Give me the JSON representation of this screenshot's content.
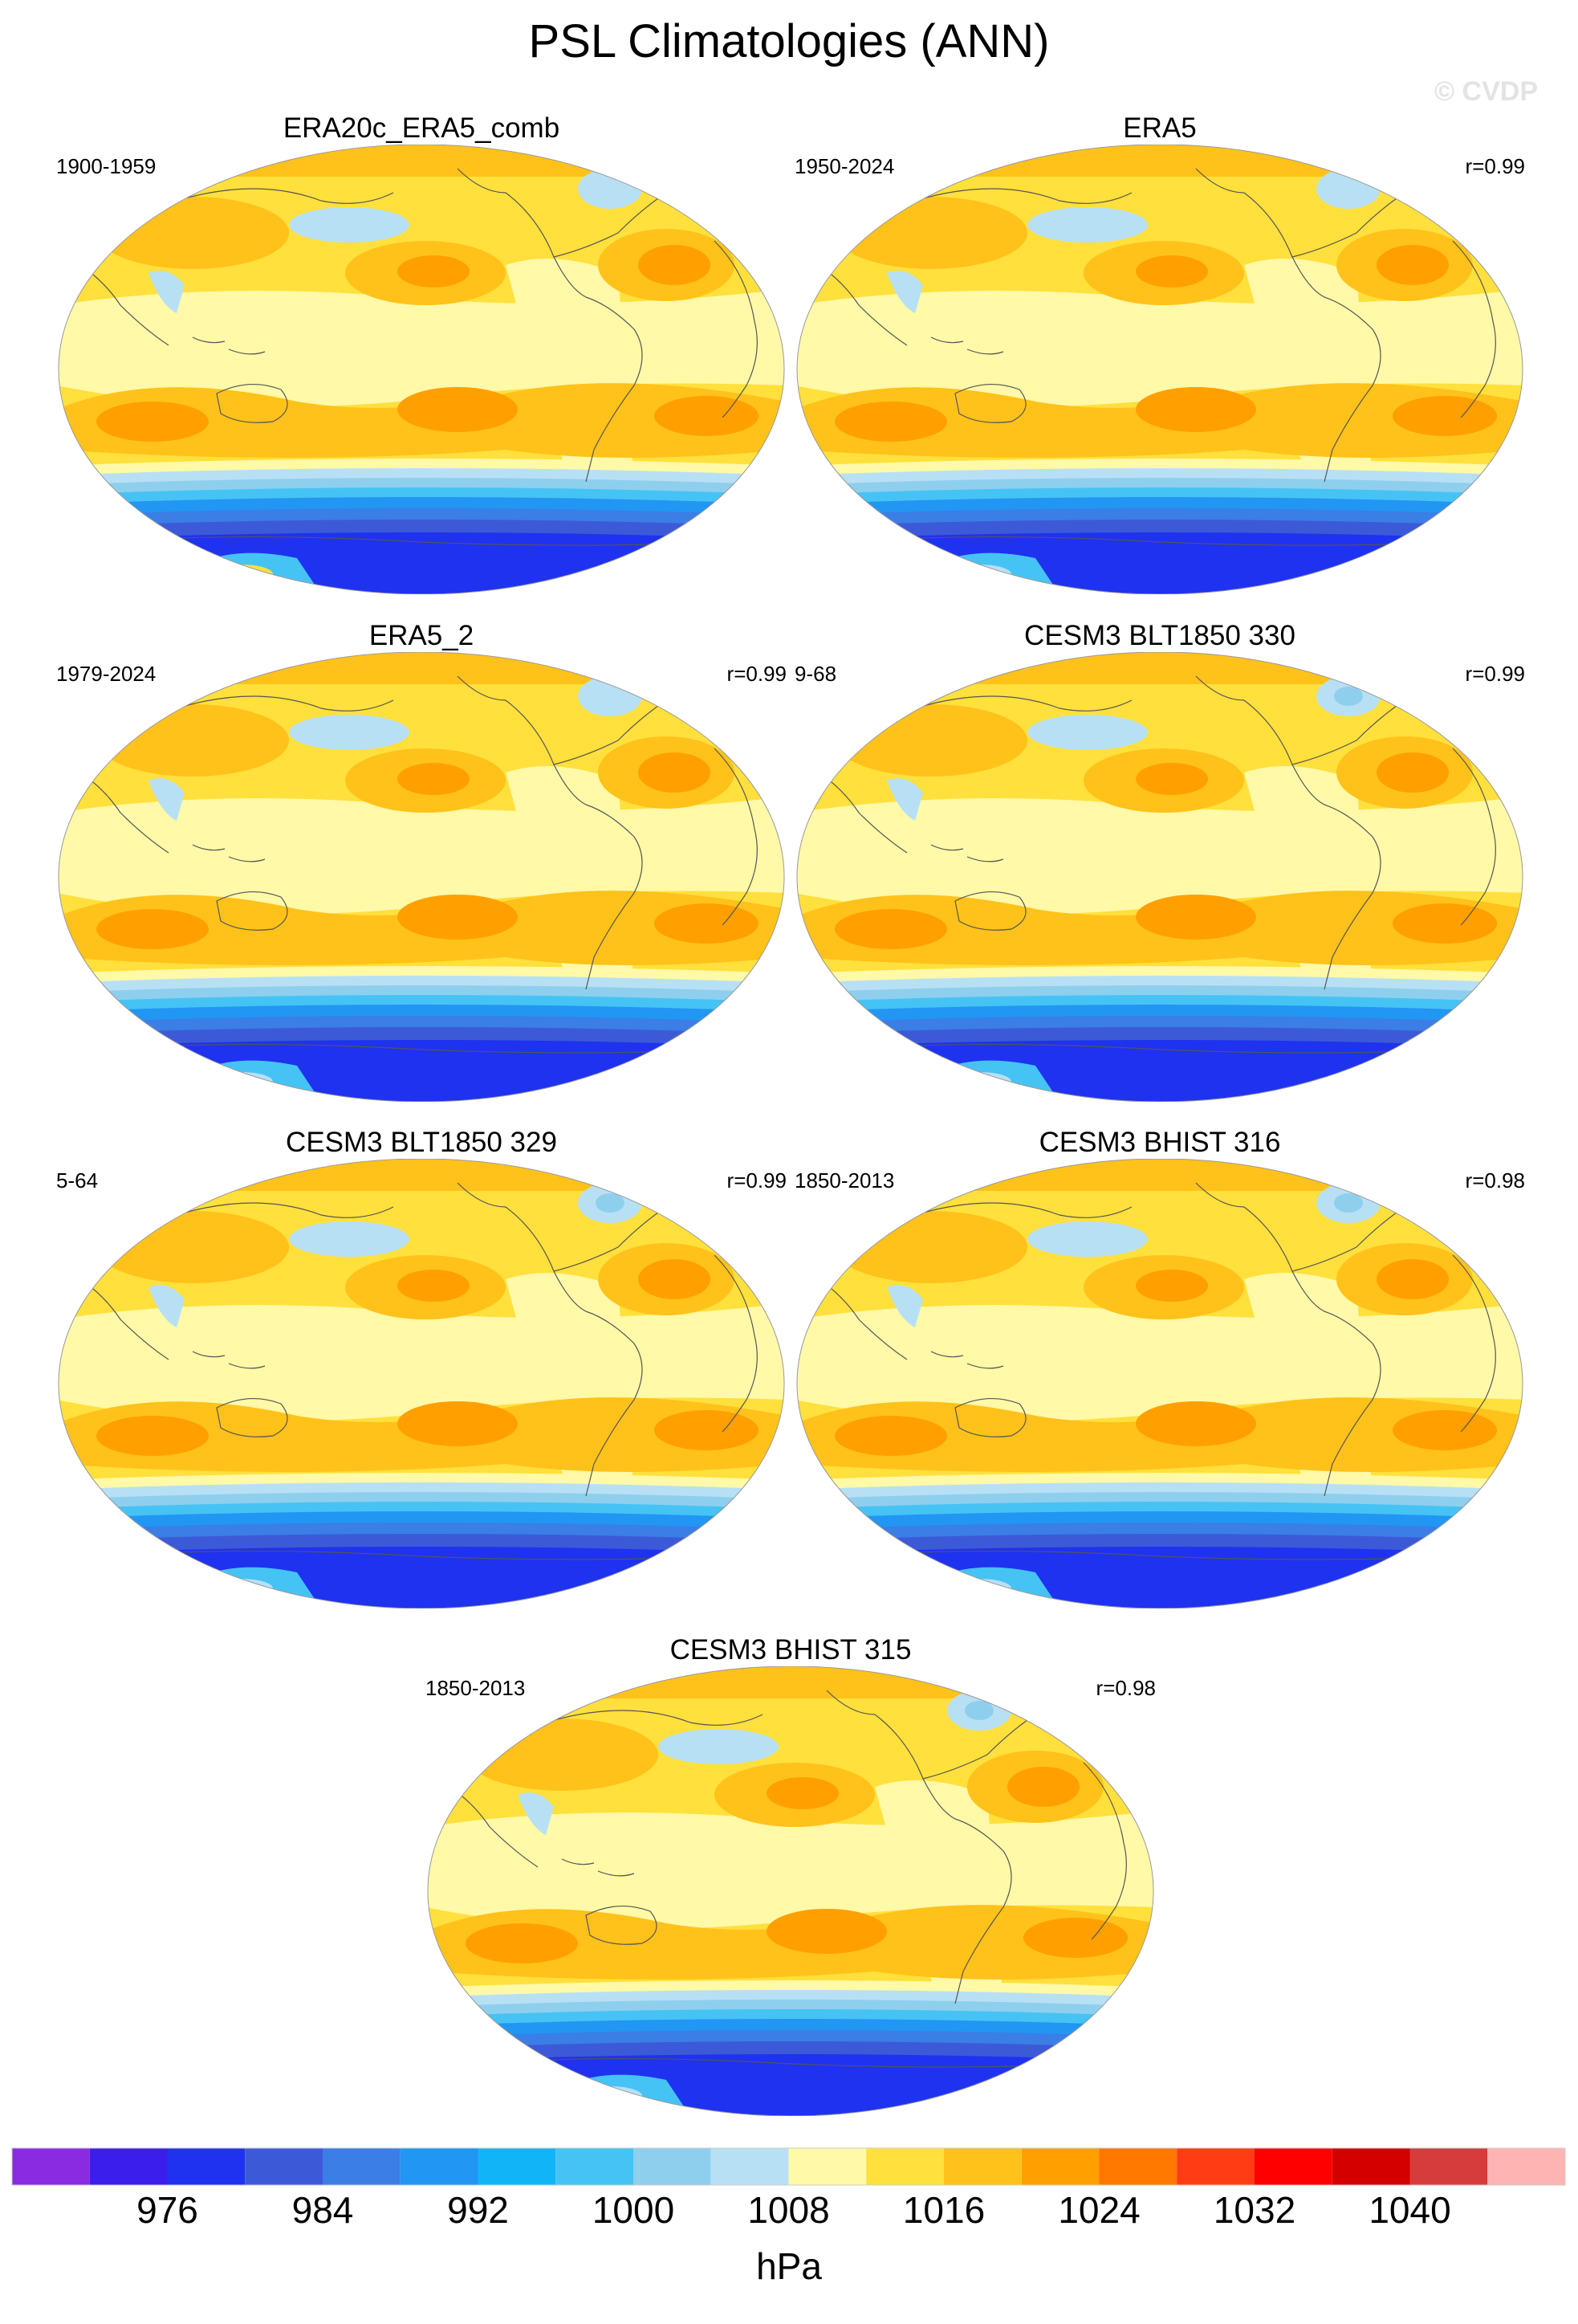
{
  "title": "PSL Climatologies (ANN)",
  "watermark": "© CVDP",
  "panels": [
    {
      "title": "ERA20c_ERA5_comb",
      "period": "1900-1959",
      "r": "",
      "variant": "era20c"
    },
    {
      "title": "ERA5",
      "period": "1950-2024",
      "r": "r=0.99",
      "variant": "era5"
    },
    {
      "title": "ERA5_2",
      "period": "1979-2024",
      "r": "r=0.99",
      "variant": "era5"
    },
    {
      "title": "CESM3 BLT1850 330",
      "period": "9-68",
      "r": "r=0.99",
      "variant": "model"
    },
    {
      "title": "CESM3 BLT1850 329",
      "period": "5-64",
      "r": "r=0.99",
      "variant": "model"
    },
    {
      "title": "CESM3 BHIST 316",
      "period": "1850-2013",
      "r": "r=0.98",
      "variant": "model"
    },
    {
      "title": "CESM3 BHIST 315",
      "period": "1850-2013",
      "r": "r=0.98",
      "variant": "model"
    }
  ],
  "colorbar": {
    "unit": "hPa",
    "labels": [
      "976",
      "984",
      "992",
      "1000",
      "1008",
      "1016",
      "1024",
      "1032",
      "1040"
    ],
    "levels": [
      972,
      976,
      980,
      984,
      988,
      992,
      996,
      1000,
      1004,
      1008,
      1012,
      1016,
      1020,
      1024,
      1028,
      1032,
      1036,
      1040
    ],
    "colors": [
      "#8a2be2",
      "#3c1eec",
      "#1e32f0",
      "#3c5ad7",
      "#3a7ee6",
      "#2196f3",
      "#12b4f8",
      "#46c3f5",
      "#8fcfee",
      "#b8e0f5",
      "#fff9a8",
      "#ffe03c",
      "#ffc21a",
      "#ffa000",
      "#ff7800",
      "#ff3c14",
      "#ff0000",
      "#d40000",
      "#d63c3c",
      "#ffb4b4"
    ]
  },
  "map_colors": {
    "ocean_light": "#fff9a8",
    "mid": "#ffe03c",
    "high": "#ffc21a",
    "higher": "#ffa000",
    "low_light": "#b8e0f5",
    "low_1": "#8fcfee",
    "low_2": "#46c3f5",
    "low_3": "#12b4f8",
    "low_4": "#2196f3",
    "low_5": "#3a7ee6",
    "low_6": "#3c5ad7",
    "low_7": "#1e32f0",
    "coast": "#555555"
  }
}
